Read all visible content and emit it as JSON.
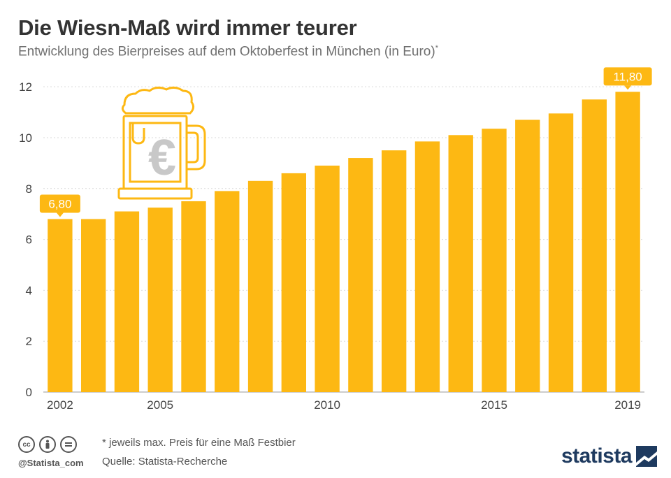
{
  "header": {
    "title": "Die Wiesn-Maß wird immer teurer",
    "subtitle": "Entwicklung des Bierpreises auf dem Oktoberfest in München (in Euro)",
    "subtitle_mark": "*"
  },
  "chart_data": {
    "type": "bar",
    "title": "Die Wiesn-Maß wird immer teurer",
    "subtitle": "Entwicklung des Bierpreises auf dem Oktoberfest in München (in Euro)*",
    "xlabel": "",
    "ylabel": "",
    "categories": [
      "2002",
      "2003",
      "2004",
      "2005",
      "2006",
      "2007",
      "2008",
      "2009",
      "2010",
      "2011",
      "2012",
      "2013",
      "2014",
      "2015",
      "2016",
      "2017",
      "2018",
      "2019"
    ],
    "values": [
      6.8,
      6.8,
      7.1,
      7.25,
      7.5,
      7.9,
      8.3,
      8.6,
      8.9,
      9.2,
      9.5,
      9.85,
      10.1,
      10.35,
      10.7,
      10.95,
      11.5,
      11.8
    ],
    "ylim": [
      0,
      12.8
    ],
    "yticks": [
      "0",
      "2",
      "4",
      "6",
      "8",
      "10",
      "12"
    ],
    "xticks": [
      "2002",
      "2005",
      "2010",
      "2015",
      "2019"
    ],
    "data_labels": [
      {
        "category": "2002",
        "text": "6,80"
      },
      {
        "category": "2019",
        "text": "11,80"
      }
    ],
    "grid": true,
    "legend": "none",
    "bar_color": "#fdb813",
    "icon": "beer-mug-euro-icon"
  },
  "footer": {
    "note": "* jeweils max. Preis für eine Maß Festbier",
    "source": "Quelle: Statista-Recherche",
    "handle": "@Statista_com",
    "brand": "statista",
    "license_icons": [
      "cc",
      "by",
      "nd"
    ]
  },
  "colors": {
    "accent": "#fdb813",
    "title": "#333333",
    "subtitle": "#6f6f6f",
    "grid": "#d9d9d9",
    "brand": "#1e3a5f"
  }
}
